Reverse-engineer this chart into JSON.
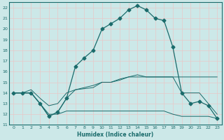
{
  "xlabel": "Humidex (Indice chaleur)",
  "ylabel": "",
  "xlim": [
    -0.5,
    23.5
  ],
  "ylim": [
    11,
    22.5
  ],
  "yticks": [
    11,
    12,
    13,
    14,
    15,
    16,
    17,
    18,
    19,
    20,
    21,
    22
  ],
  "xticks": [
    0,
    1,
    2,
    3,
    4,
    5,
    6,
    7,
    8,
    9,
    10,
    11,
    12,
    13,
    14,
    15,
    16,
    17,
    18,
    19,
    20,
    21,
    22,
    23
  ],
  "bg_color": "#cce8e8",
  "line_color": "#1a6b6b",
  "grid_color": "#b0d4d4",
  "line_main_x": [
    0,
    1,
    2,
    3,
    4,
    5,
    6,
    7,
    8,
    9,
    10,
    11,
    12,
    13,
    14,
    15,
    16,
    17,
    18,
    19,
    20,
    21,
    22,
    23
  ],
  "line_main_y": [
    14.0,
    14.0,
    14.0,
    13.0,
    11.8,
    12.2,
    13.5,
    16.5,
    17.3,
    18.0,
    20.0,
    20.5,
    21.0,
    21.8,
    22.2,
    21.8,
    21.0,
    20.8,
    18.3,
    14.0,
    13.0,
    13.2,
    12.8,
    11.6
  ],
  "line_flat1_x": [
    0,
    1,
    2,
    3,
    4,
    5,
    6,
    7,
    8,
    9,
    10,
    11,
    12,
    13,
    14,
    15,
    16,
    17,
    18,
    19,
    20,
    21,
    22,
    23
  ],
  "line_flat1_y": [
    14.0,
    14.0,
    14.0,
    13.0,
    11.8,
    12.2,
    13.5,
    14.3,
    14.4,
    14.5,
    15.0,
    15.0,
    15.2,
    15.5,
    15.7,
    15.5,
    15.5,
    15.5,
    15.5,
    14.0,
    14.0,
    14.0,
    13.0,
    12.0
  ],
  "line_flat2_x": [
    0,
    1,
    2,
    3,
    4,
    5,
    6,
    7,
    8,
    9,
    10,
    11,
    12,
    13,
    14,
    15,
    16,
    17,
    18,
    19,
    20,
    21,
    22,
    23
  ],
  "line_flat2_y": [
    14.0,
    14.0,
    14.0,
    13.0,
    12.0,
    12.0,
    12.3,
    12.3,
    12.3,
    12.3,
    12.3,
    12.3,
    12.3,
    12.3,
    12.3,
    12.3,
    12.3,
    12.3,
    12.0,
    11.8,
    11.8,
    11.8,
    11.8,
    11.6
  ],
  "line_flat3_x": [
    0,
    1,
    2,
    3,
    4,
    5,
    6,
    7,
    8,
    9,
    10,
    11,
    12,
    13,
    14,
    15,
    16,
    17,
    18,
    19,
    20,
    21,
    22,
    23
  ],
  "line_flat3_y": [
    14.0,
    14.0,
    14.3,
    13.5,
    12.8,
    13.0,
    14.0,
    14.3,
    14.5,
    14.7,
    15.0,
    15.0,
    15.3,
    15.5,
    15.5,
    15.5,
    15.5,
    15.5,
    15.5,
    15.5,
    15.5,
    15.5,
    15.5,
    15.5
  ],
  "marker": "D",
  "markersize": 2.5
}
